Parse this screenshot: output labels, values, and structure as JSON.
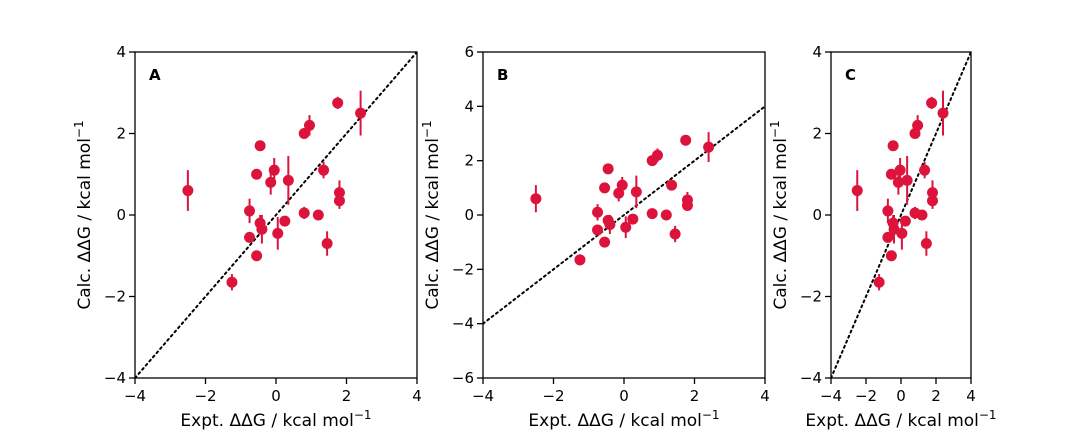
{
  "chart_data": [
    {
      "type": "scatter",
      "panel_label": "A",
      "xlabel": "Expt. ΔΔG / kcal mol",
      "ylabel": "Calc. ΔΔG / kcal mol",
      "label_superscript": "−1",
      "xlim": [
        -4,
        4
      ],
      "ylim": [
        -4,
        4
      ],
      "xticks": [
        -4,
        -2,
        0,
        2,
        4
      ],
      "yticks": [
        -4,
        -2,
        0,
        2,
        4
      ],
      "tick_labels_x": [
        "−4",
        "−2",
        "0",
        "2",
        "4"
      ],
      "tick_labels_y": [
        "−4",
        "−2",
        "0",
        "2",
        "4"
      ],
      "grid": false,
      "reference_line": {
        "style": "dotted",
        "slope": 1,
        "intercept": 0
      },
      "marker_color": "#dc143c",
      "points": [
        {
          "x": -2.5,
          "y": 0.6,
          "err": 0.5
        },
        {
          "x": -1.25,
          "y": -1.65,
          "err": 0.2
        },
        {
          "x": -0.75,
          "y": 0.1,
          "err": 0.3
        },
        {
          "x": -0.75,
          "y": -0.55,
          "err": 0.0
        },
        {
          "x": -0.55,
          "y": 1.0,
          "err": 0.0
        },
        {
          "x": -0.55,
          "y": -1.0,
          "err": 0.0
        },
        {
          "x": -0.45,
          "y": -0.2,
          "err": 0.2
        },
        {
          "x": -0.4,
          "y": -0.35,
          "err": 0.35
        },
        {
          "x": -0.45,
          "y": 1.7,
          "err": 0.0
        },
        {
          "x": -0.15,
          "y": 0.8,
          "err": 0.3
        },
        {
          "x": -0.05,
          "y": 1.1,
          "err": 0.3
        },
        {
          "x": 0.05,
          "y": -0.45,
          "err": 0.4
        },
        {
          "x": 0.25,
          "y": -0.15,
          "err": 0.0
        },
        {
          "x": 0.35,
          "y": 0.85,
          "err": 0.6
        },
        {
          "x": 0.8,
          "y": 2.0,
          "err": 0.0
        },
        {
          "x": 0.8,
          "y": 0.05,
          "err": 0.15
        },
        {
          "x": 0.95,
          "y": 2.2,
          "err": 0.25
        },
        {
          "x": 1.2,
          "y": 0.0,
          "err": 0.0
        },
        {
          "x": 1.35,
          "y": 1.1,
          "err": 0.2
        },
        {
          "x": 1.45,
          "y": -0.7,
          "err": 0.3
        },
        {
          "x": 1.75,
          "y": 2.75,
          "err": 0.15
        },
        {
          "x": 1.8,
          "y": 0.55,
          "err": 0.3
        },
        {
          "x": 1.8,
          "y": 0.35,
          "err": 0.2
        },
        {
          "x": 2.4,
          "y": 2.5,
          "err": 0.55
        }
      ]
    },
    {
      "type": "scatter",
      "panel_label": "B",
      "xlabel": "Expt. ΔΔG / kcal mol",
      "ylabel": "Calc. ΔΔG / kcal mol",
      "label_superscript": "−1",
      "xlim": [
        -4,
        4
      ],
      "ylim": [
        -6,
        6
      ],
      "xticks": [
        -4,
        -2,
        0,
        2,
        4
      ],
      "yticks": [
        -6,
        -4,
        -2,
        0,
        2,
        4,
        6
      ],
      "tick_labels_x": [
        "−4",
        "−2",
        "0",
        "2",
        "4"
      ],
      "tick_labels_y": [
        "−6",
        "−4",
        "−2",
        "0",
        "2",
        "4",
        "6"
      ],
      "grid": false,
      "reference_line": {
        "style": "dotted",
        "slope": 1,
        "intercept": 0
      },
      "marker_color": "#dc143c",
      "points": [
        {
          "x": -2.5,
          "y": 0.6,
          "err": 0.5
        },
        {
          "x": -1.25,
          "y": -1.65,
          "err": 0.2
        },
        {
          "x": -0.75,
          "y": 0.1,
          "err": 0.3
        },
        {
          "x": -0.75,
          "y": -0.55,
          "err": 0.0
        },
        {
          "x": -0.55,
          "y": 1.0,
          "err": 0.0
        },
        {
          "x": -0.55,
          "y": -1.0,
          "err": 0.0
        },
        {
          "x": -0.45,
          "y": -0.2,
          "err": 0.2
        },
        {
          "x": -0.4,
          "y": -0.35,
          "err": 0.35
        },
        {
          "x": -0.45,
          "y": 1.7,
          "err": 0.0
        },
        {
          "x": -0.15,
          "y": 0.8,
          "err": 0.3
        },
        {
          "x": -0.05,
          "y": 1.1,
          "err": 0.3
        },
        {
          "x": 0.05,
          "y": -0.45,
          "err": 0.4
        },
        {
          "x": 0.25,
          "y": -0.15,
          "err": 0.0
        },
        {
          "x": 0.35,
          "y": 0.85,
          "err": 0.6
        },
        {
          "x": 0.8,
          "y": 2.0,
          "err": 0.0
        },
        {
          "x": 0.8,
          "y": 0.05,
          "err": 0.15
        },
        {
          "x": 0.95,
          "y": 2.2,
          "err": 0.25
        },
        {
          "x": 1.2,
          "y": 0.0,
          "err": 0.0
        },
        {
          "x": 1.35,
          "y": 1.1,
          "err": 0.2
        },
        {
          "x": 1.45,
          "y": -0.7,
          "err": 0.3
        },
        {
          "x": 1.75,
          "y": 2.75,
          "err": 0.15
        },
        {
          "x": 1.8,
          "y": 0.55,
          "err": 0.3
        },
        {
          "x": 1.8,
          "y": 0.35,
          "err": 0.2
        },
        {
          "x": 2.4,
          "y": 2.5,
          "err": 0.55
        }
      ]
    },
    {
      "type": "scatter",
      "panel_label": "C",
      "xlabel": "Expt. ΔΔG / kcal mol",
      "ylabel": "Calc. ΔΔG / kcal mol",
      "label_superscript": "−1",
      "xlim": [
        -4,
        4
      ],
      "ylim": [
        -4,
        4
      ],
      "xticks": [
        -4,
        -2,
        0,
        2,
        4
      ],
      "yticks": [
        -4,
        -2,
        0,
        2,
        4
      ],
      "tick_labels_x": [
        "−4",
        "−2",
        "0",
        "2",
        "4"
      ],
      "tick_labels_y": [
        "−4",
        "−2",
        "0",
        "2",
        "4"
      ],
      "grid": false,
      "reference_line": {
        "style": "dotted",
        "slope": 1,
        "intercept": 0
      },
      "marker_color": "#dc143c",
      "points": [
        {
          "x": -2.5,
          "y": 0.6,
          "err": 0.5
        },
        {
          "x": -1.25,
          "y": -1.65,
          "err": 0.2
        },
        {
          "x": -0.75,
          "y": 0.1,
          "err": 0.3
        },
        {
          "x": -0.75,
          "y": -0.55,
          "err": 0.0
        },
        {
          "x": -0.55,
          "y": 1.0,
          "err": 0.0
        },
        {
          "x": -0.55,
          "y": -1.0,
          "err": 0.0
        },
        {
          "x": -0.45,
          "y": -0.2,
          "err": 0.2
        },
        {
          "x": -0.4,
          "y": -0.35,
          "err": 0.35
        },
        {
          "x": -0.45,
          "y": 1.7,
          "err": 0.0
        },
        {
          "x": -0.15,
          "y": 0.8,
          "err": 0.3
        },
        {
          "x": -0.05,
          "y": 1.1,
          "err": 0.3
        },
        {
          "x": 0.05,
          "y": -0.45,
          "err": 0.4
        },
        {
          "x": 0.25,
          "y": -0.15,
          "err": 0.0
        },
        {
          "x": 0.35,
          "y": 0.85,
          "err": 0.6
        },
        {
          "x": 0.8,
          "y": 2.0,
          "err": 0.0
        },
        {
          "x": 0.8,
          "y": 0.05,
          "err": 0.15
        },
        {
          "x": 0.95,
          "y": 2.2,
          "err": 0.25
        },
        {
          "x": 1.2,
          "y": 0.0,
          "err": 0.0
        },
        {
          "x": 1.35,
          "y": 1.1,
          "err": 0.2
        },
        {
          "x": 1.45,
          "y": -0.7,
          "err": 0.3
        },
        {
          "x": 1.75,
          "y": 2.75,
          "err": 0.15
        },
        {
          "x": 1.8,
          "y": 0.55,
          "err": 0.3
        },
        {
          "x": 1.8,
          "y": 0.35,
          "err": 0.2
        },
        {
          "x": 2.4,
          "y": 2.5,
          "err": 0.55
        }
      ]
    }
  ]
}
